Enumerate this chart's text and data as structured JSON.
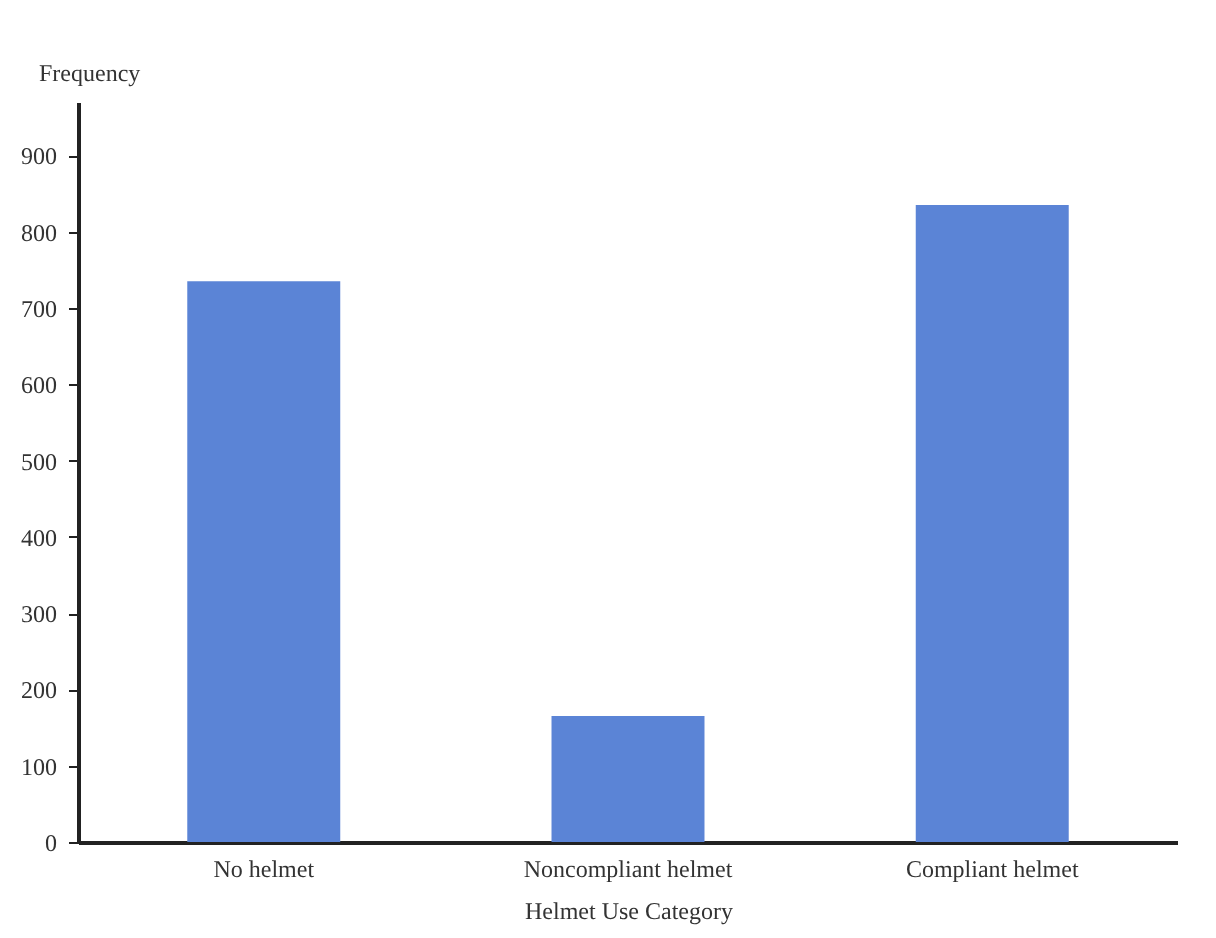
{
  "chart_data": {
    "type": "bar",
    "xlabel": "Helmet Use Category",
    "ylabel": "Frequency",
    "categories": [
      "No helmet",
      "Noncompliant helmet",
      "Compliant helmet"
    ],
    "values": [
      735,
      165,
      835
    ],
    "color": "#5b84d6",
    "ylim": [
      0,
      970
    ],
    "yticks": [
      0,
      100,
      200,
      300,
      400,
      500,
      600,
      700,
      800,
      900
    ],
    "grid": false
  }
}
